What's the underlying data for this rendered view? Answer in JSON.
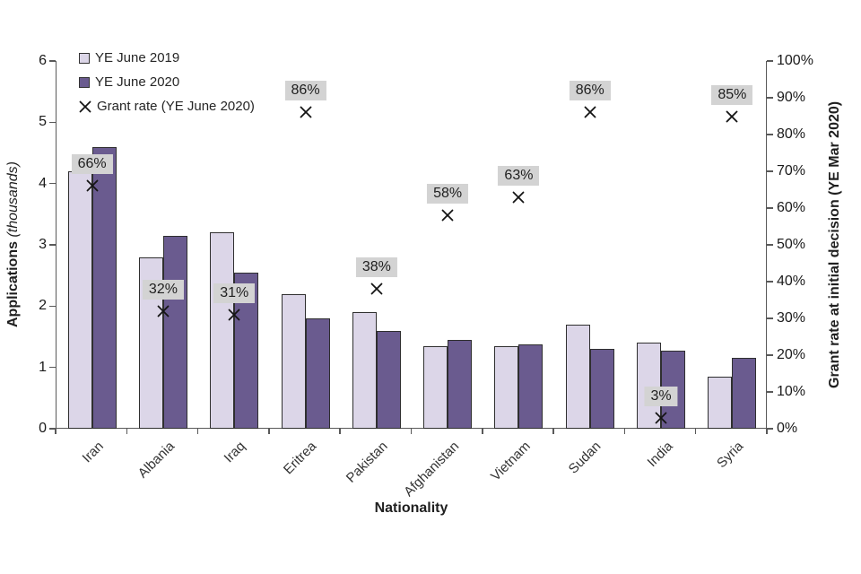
{
  "chart_data": {
    "type": "bar",
    "title": "",
    "categories": [
      "Iran",
      "Albania",
      "Iraq",
      "Eritrea",
      "Pakistan",
      "Afghanistan",
      "Vietnam",
      "Sudan",
      "India",
      "Syria"
    ],
    "series": [
      {
        "name": "YE June 2019",
        "kind": "bar",
        "axis": "left",
        "color": "#dcd6e8",
        "values": [
          4.2,
          2.8,
          3.2,
          2.2,
          1.9,
          1.35,
          1.35,
          1.7,
          1.4,
          0.85
        ]
      },
      {
        "name": "YE June 2020",
        "kind": "bar",
        "axis": "left",
        "color": "#6a5b8f",
        "values": [
          4.6,
          3.15,
          2.55,
          1.8,
          1.6,
          1.45,
          1.37,
          1.3,
          1.28,
          1.15
        ]
      },
      {
        "name": "Grant rate (YE June 2020)",
        "kind": "scatter-x",
        "axis": "right",
        "values": [
          66,
          32,
          31,
          86,
          38,
          58,
          63,
          86,
          3,
          85
        ],
        "labels": [
          "66%",
          "32%",
          "31%",
          "86%",
          "38%",
          "58%",
          "63%",
          "86%",
          "3%",
          "85%"
        ]
      }
    ],
    "left_axis": {
      "title": "Applications",
      "title_note": " (thousands)",
      "min": 0,
      "max": 6,
      "step": 1,
      "tick_labels": [
        "0",
        "1",
        "2",
        "3",
        "4",
        "5",
        "6"
      ]
    },
    "right_axis": {
      "title": "Grant rate at initial decision",
      "title_note": " (YE Mar 2020)",
      "min": 0,
      "max": 100,
      "step": 10,
      "suffix": "%",
      "tick_labels": [
        "0%",
        "10%",
        "20%",
        "30%",
        "40%",
        "50%",
        "60%",
        "70%",
        "80%",
        "90%",
        "100%"
      ]
    },
    "xlabel": "Nationality",
    "legend_position": "top-left",
    "grid": false,
    "colors": {
      "label_bg": "#d3d3d3",
      "axis_line": "#595959",
      "marker": "#141414",
      "bar_border": "#2f2f2f"
    }
  }
}
